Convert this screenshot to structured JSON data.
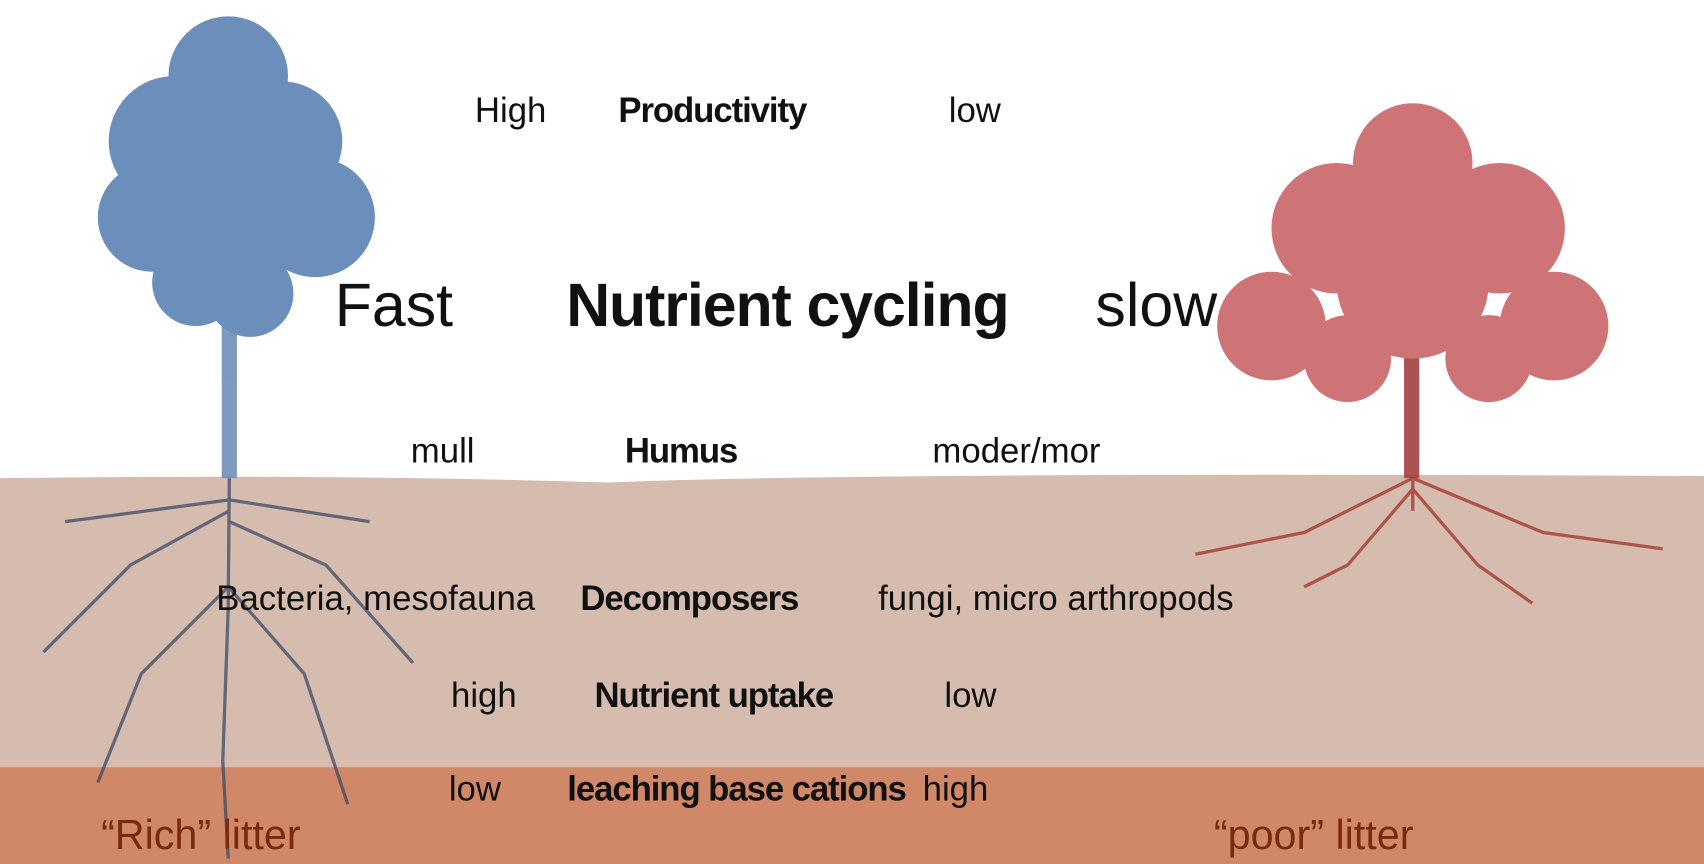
{
  "rows": [
    {
      "left": "High",
      "label": "Productivity",
      "right": "low"
    },
    {
      "left": "Fast",
      "label": "Nutrient cycling",
      "right": "slow"
    },
    {
      "left": "mull",
      "label": "Humus",
      "right": "moder/mor"
    },
    {
      "left": "Bacteria, mesofauna",
      "label": "Decomposers",
      "right": "fungi, micro arthropods"
    },
    {
      "left": "high",
      "label": "Nutrient uptake",
      "right": "low"
    },
    {
      "left": "low",
      "label": "leaching base cations",
      "right": "high"
    }
  ],
  "litter": {
    "left": "“Rich” litter",
    "right": "“poor” litter"
  }
}
